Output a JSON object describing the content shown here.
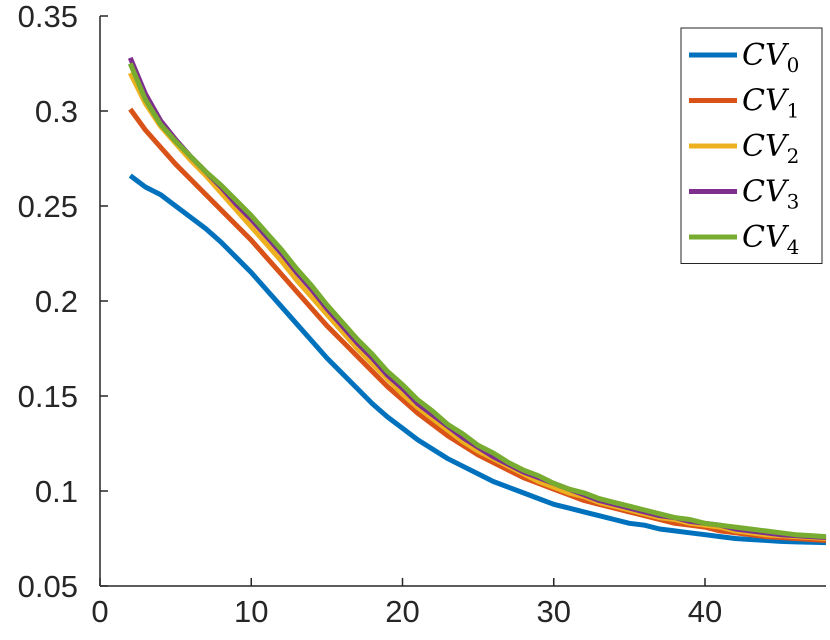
{
  "chart_data": {
    "type": "line",
    "title": "",
    "xlabel": "",
    "ylabel": "",
    "xlim": [
      0,
      48
    ],
    "ylim": [
      0.05,
      0.35
    ],
    "x_ticks": [
      0,
      10,
      20,
      30,
      40
    ],
    "x_tick_labels": [
      "0",
      "10",
      "20",
      "30",
      "40"
    ],
    "y_ticks": [
      0.05,
      0.1,
      0.15,
      0.2,
      0.25,
      0.3,
      0.35
    ],
    "y_tick_labels": [
      "0.05",
      "0.1",
      "0.15",
      "0.2",
      "0.25",
      "0.3",
      "0.35"
    ],
    "grid": false,
    "legend_position": "top-right",
    "x": [
      2,
      3,
      4,
      5,
      6,
      7,
      8,
      9,
      10,
      11,
      12,
      13,
      14,
      15,
      16,
      17,
      18,
      19,
      20,
      21,
      22,
      23,
      24,
      25,
      26,
      27,
      28,
      29,
      30,
      31,
      32,
      33,
      34,
      35,
      36,
      37,
      38,
      39,
      40,
      41,
      42,
      43,
      44,
      45,
      46,
      47,
      48
    ],
    "series": [
      {
        "name": "CV",
        "subscript": "0",
        "color": "#0072BD",
        "values": [
          0.266,
          0.26,
          0.256,
          0.25,
          0.244,
          0.238,
          0.231,
          0.223,
          0.215,
          0.206,
          0.197,
          0.188,
          0.179,
          0.17,
          0.162,
          0.154,
          0.146,
          0.139,
          0.133,
          0.127,
          0.122,
          0.117,
          0.113,
          0.109,
          0.105,
          0.102,
          0.099,
          0.096,
          0.093,
          0.091,
          0.089,
          0.087,
          0.085,
          0.083,
          0.082,
          0.08,
          0.079,
          0.078,
          0.077,
          0.076,
          0.075,
          0.0745,
          0.074,
          0.0735,
          0.0732,
          0.073,
          0.0728
        ]
      },
      {
        "name": "CV",
        "subscript": "1",
        "color": "#D95319",
        "values": [
          0.301,
          0.29,
          0.281,
          0.272,
          0.264,
          0.256,
          0.248,
          0.24,
          0.232,
          0.223,
          0.214,
          0.205,
          0.196,
          0.187,
          0.179,
          0.171,
          0.163,
          0.155,
          0.148,
          0.141,
          0.135,
          0.129,
          0.124,
          0.119,
          0.115,
          0.111,
          0.107,
          0.104,
          0.101,
          0.098,
          0.095,
          0.093,
          0.091,
          0.089,
          0.087,
          0.085,
          0.083,
          0.082,
          0.081,
          0.079,
          0.078,
          0.077,
          0.076,
          0.0755,
          0.075,
          0.0745,
          0.074
        ]
      },
      {
        "name": "CV",
        "subscript": "2",
        "color": "#EDB120",
        "values": [
          0.32,
          0.304,
          0.292,
          0.283,
          0.274,
          0.266,
          0.257,
          0.248,
          0.239,
          0.23,
          0.221,
          0.211,
          0.202,
          0.193,
          0.184,
          0.175,
          0.167,
          0.159,
          0.151,
          0.144,
          0.138,
          0.132,
          0.126,
          0.121,
          0.117,
          0.113,
          0.109,
          0.105,
          0.102,
          0.099,
          0.097,
          0.094,
          0.092,
          0.09,
          0.088,
          0.086,
          0.085,
          0.083,
          0.082,
          0.081,
          0.079,
          0.078,
          0.077,
          0.0765,
          0.076,
          0.0755,
          0.075
        ]
      },
      {
        "name": "CV",
        "subscript": "3",
        "color": "#7E2F8E",
        "values": [
          0.328,
          0.309,
          0.295,
          0.285,
          0.276,
          0.268,
          0.26,
          0.251,
          0.243,
          0.234,
          0.225,
          0.215,
          0.206,
          0.196,
          0.187,
          0.178,
          0.17,
          0.161,
          0.154,
          0.146,
          0.14,
          0.134,
          0.128,
          0.123,
          0.118,
          0.114,
          0.11,
          0.107,
          0.104,
          0.101,
          0.098,
          0.095,
          0.093,
          0.091,
          0.089,
          0.087,
          0.086,
          0.084,
          0.083,
          0.082,
          0.08,
          0.079,
          0.078,
          0.077,
          0.0765,
          0.076,
          0.0755
        ]
      },
      {
        "name": "CV",
        "subscript": "4",
        "color": "#77AC30",
        "values": [
          0.325,
          0.306,
          0.293,
          0.284,
          0.276,
          0.268,
          0.261,
          0.253,
          0.245,
          0.236,
          0.227,
          0.217,
          0.208,
          0.198,
          0.189,
          0.18,
          0.172,
          0.163,
          0.156,
          0.148,
          0.142,
          0.135,
          0.13,
          0.124,
          0.12,
          0.115,
          0.111,
          0.108,
          0.104,
          0.101,
          0.099,
          0.096,
          0.094,
          0.092,
          0.09,
          0.088,
          0.086,
          0.085,
          0.083,
          0.082,
          0.081,
          0.08,
          0.079,
          0.078,
          0.077,
          0.0765,
          0.076
        ]
      }
    ]
  }
}
